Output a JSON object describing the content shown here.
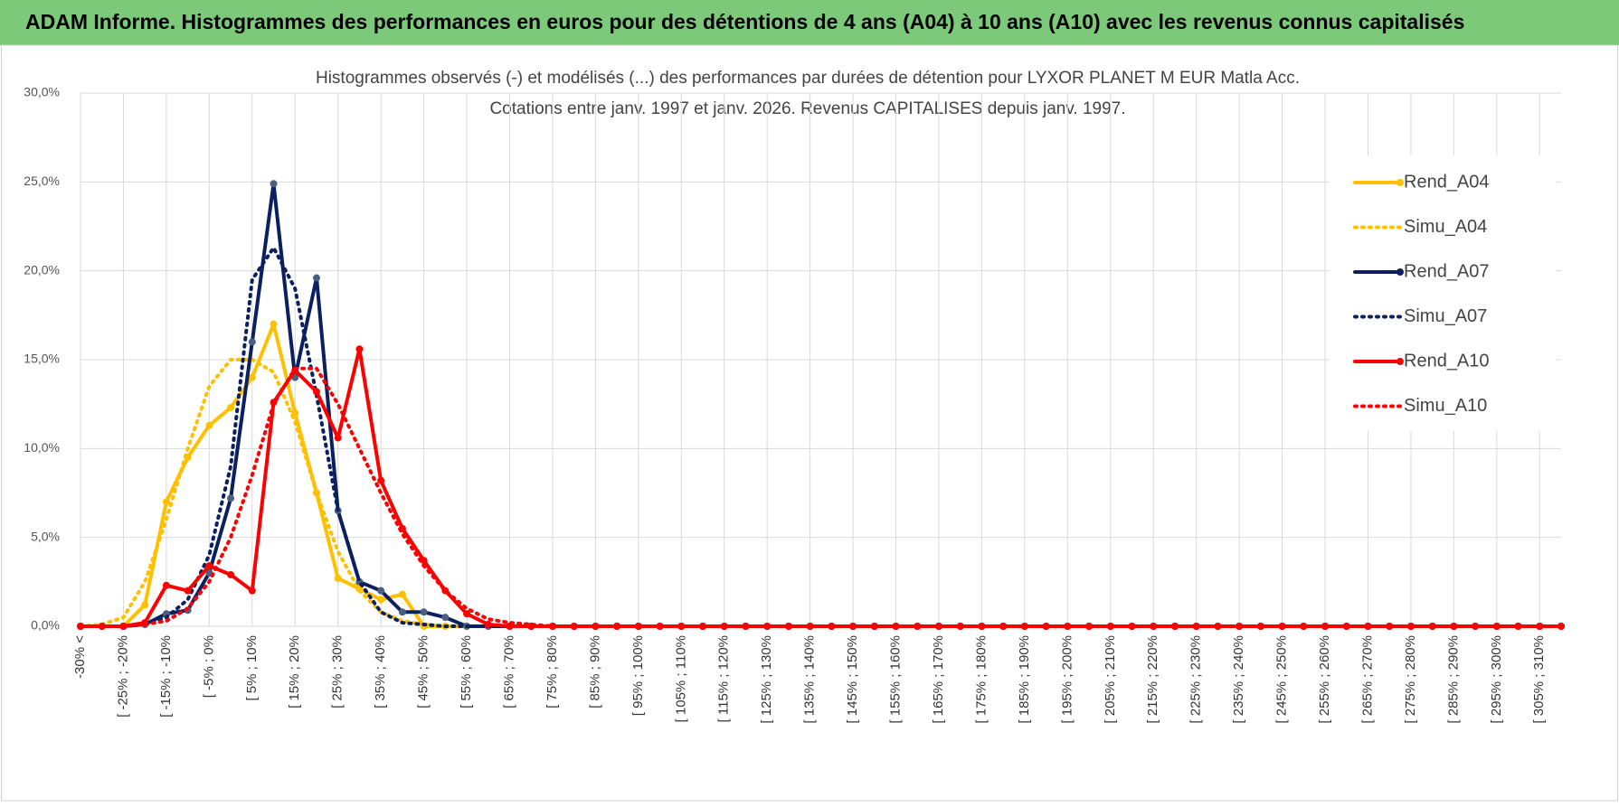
{
  "header": {
    "title": "ADAM Informe. Histogrammes des performances en euros pour des détentions de 4 ans (A04) à 10 ans (A10) avec les revenus connus capitalisés"
  },
  "chart_data": {
    "type": "line",
    "title": "Histogrammes observés (-) et modélisés (...) des performances par durées de détention pour LYXOR PLANET M EUR Matla Acc.",
    "subtitle": "Cotations entre janv. 1997 et janv. 2026. Revenus CAPITALISES depuis janv. 1997.",
    "categories": [
      "-30% <",
      null,
      "[ -25% ; -20%",
      null,
      "[ -15% ; -10%",
      null,
      "[ -5% ; 0%",
      null,
      "[ 5% ; 10%",
      null,
      "[ 15% ; 20%",
      null,
      "[ 25% ; 30%",
      null,
      "[ 35% ; 40%",
      null,
      "[ 45% ; 50%",
      null,
      "[ 55% ; 60%",
      null,
      "[ 65% ; 70%",
      null,
      "[ 75% ; 80%",
      null,
      "[ 85% ; 90%",
      null,
      "[ 95% ; 100%",
      null,
      "[ 105% ; 110%",
      null,
      "[ 115% ; 120%",
      null,
      "[ 125% ; 130%",
      null,
      "[ 135% ; 140%",
      null,
      "[ 145% ; 150%",
      null,
      "[ 155% ; 160%",
      null,
      "[ 165% ; 170%",
      null,
      "[ 175% ; 180%",
      null,
      "[ 185% ; 190%",
      null,
      "[ 195% ; 200%",
      null,
      "[ 205% ; 210%",
      null,
      "[ 215% ; 220%",
      null,
      "[ 225% ; 230%",
      null,
      "[ 235% ; 240%",
      null,
      "[ 245% ; 250%",
      null,
      "[ 255% ; 260%",
      null,
      "[ 265% ; 270%",
      null,
      "[ 275% ; 280%",
      null,
      "[ 285% ; 290%",
      null,
      "[ 295% ; 300%",
      null,
      "[ 305% ; 310%",
      null
    ],
    "series": [
      {
        "name": "Rend_A04",
        "color": "#ffc000",
        "style": "solid",
        "values": [
          0,
          0,
          0,
          1.2,
          7.0,
          9.5,
          11.3,
          12.3,
          14.0,
          17.0,
          12.0,
          7.5,
          2.7,
          2.1,
          1.5,
          1.8,
          0,
          0,
          0,
          0,
          0,
          0,
          0,
          0,
          0,
          0,
          0,
          0,
          0,
          0,
          0,
          0,
          0,
          0,
          0,
          0,
          0,
          0,
          0,
          0,
          0,
          0,
          0,
          0,
          0,
          0,
          0,
          0,
          0,
          0,
          0,
          0,
          0,
          0,
          0,
          0,
          0,
          0,
          0,
          0,
          0,
          0,
          0,
          0,
          0,
          0,
          0,
          0,
          0,
          0
        ]
      },
      {
        "name": "Simu_A04",
        "color": "#ffc000",
        "style": "dotted",
        "values": [
          0,
          0.1,
          0.5,
          2.5,
          6.0,
          10.0,
          13.5,
          15.0,
          15.0,
          14.3,
          11.5,
          7.5,
          4.2,
          2.0,
          0.8,
          0.3,
          0.1,
          0,
          0,
          0,
          0,
          0,
          0,
          0,
          0,
          0,
          0,
          0,
          0,
          0,
          0,
          0,
          0,
          0,
          0,
          0,
          0,
          0,
          0,
          0,
          0,
          0,
          0,
          0,
          0,
          0,
          0,
          0,
          0,
          0,
          0,
          0,
          0,
          0,
          0,
          0,
          0,
          0,
          0,
          0,
          0,
          0,
          0,
          0,
          0,
          0,
          0,
          0,
          0,
          0
        ]
      },
      {
        "name": "Rend_A07",
        "color": "#0b2060",
        "style": "solid",
        "values": [
          0,
          0,
          0,
          0.1,
          0.7,
          0.9,
          3.0,
          7.2,
          16.0,
          24.9,
          14.0,
          19.6,
          6.5,
          2.5,
          2.0,
          0.8,
          0.8,
          0.5,
          0,
          0,
          0,
          0,
          0,
          0,
          0,
          0,
          0,
          0,
          0,
          0,
          0,
          0,
          0,
          0,
          0,
          0,
          0,
          0,
          0,
          0,
          0,
          0,
          0,
          0,
          0,
          0,
          0,
          0,
          0,
          0,
          0,
          0,
          0,
          0,
          0,
          0,
          0,
          0,
          0,
          0,
          0,
          0,
          0,
          0,
          0,
          0,
          0,
          0,
          0,
          0
        ]
      },
      {
        "name": "Simu_A07",
        "color": "#0b2060",
        "style": "dotted",
        "values": [
          0,
          0,
          0,
          0.1,
          0.5,
          1.5,
          4.0,
          9.0,
          19.5,
          21.3,
          19.0,
          13.0,
          6.5,
          2.5,
          0.8,
          0.2,
          0.1,
          0,
          0,
          0,
          0,
          0,
          0,
          0,
          0,
          0,
          0,
          0,
          0,
          0,
          0,
          0,
          0,
          0,
          0,
          0,
          0,
          0,
          0,
          0,
          0,
          0,
          0,
          0,
          0,
          0,
          0,
          0,
          0,
          0,
          0,
          0,
          0,
          0,
          0,
          0,
          0,
          0,
          0,
          0,
          0,
          0,
          0,
          0,
          0,
          0,
          0,
          0,
          0,
          0
        ]
      },
      {
        "name": "Rend_A10",
        "color": "#ff0000",
        "style": "solid",
        "values": [
          0,
          0,
          0,
          0.2,
          2.3,
          2.0,
          3.4,
          2.9,
          2.0,
          12.6,
          14.4,
          13.2,
          10.6,
          15.6,
          8.2,
          5.5,
          3.7,
          2.0,
          0.7,
          0.1,
          0,
          0,
          0,
          0,
          0,
          0,
          0,
          0,
          0,
          0,
          0,
          0,
          0,
          0,
          0,
          0,
          0,
          0,
          0,
          0,
          0,
          0,
          0,
          0,
          0,
          0,
          0,
          0,
          0,
          0,
          0,
          0,
          0,
          0,
          0,
          0,
          0,
          0,
          0,
          0,
          0,
          0,
          0,
          0,
          0,
          0,
          0,
          0,
          0,
          0
        ]
      },
      {
        "name": "Simu_A10",
        "color": "#ff0000",
        "style": "dotted",
        "values": [
          0,
          0,
          0,
          0.1,
          0.3,
          1.0,
          2.5,
          5.0,
          8.5,
          12.5,
          14.5,
          14.5,
          12.5,
          10.0,
          7.5,
          5.2,
          3.4,
          2.0,
          1.0,
          0.4,
          0.2,
          0.1,
          0,
          0,
          0,
          0,
          0,
          0,
          0,
          0,
          0,
          0,
          0,
          0,
          0,
          0,
          0,
          0,
          0,
          0,
          0,
          0,
          0,
          0,
          0,
          0,
          0,
          0,
          0,
          0,
          0,
          0,
          0,
          0,
          0,
          0,
          0,
          0,
          0,
          0,
          0,
          0,
          0,
          0,
          0,
          0,
          0,
          0,
          0,
          0
        ]
      }
    ],
    "ylim": [
      0,
      30
    ],
    "yticks": [
      {
        "value": 0,
        "label": "0,0%"
      },
      {
        "value": 5,
        "label": "5,0%"
      },
      {
        "value": 10,
        "label": "10,0%"
      },
      {
        "value": 15,
        "label": "15,0%"
      },
      {
        "value": 20,
        "label": "20,0%"
      },
      {
        "value": 25,
        "label": "25,0%"
      },
      {
        "value": 30,
        "label": "30,0%"
      }
    ],
    "grid": true,
    "legend": "right"
  }
}
